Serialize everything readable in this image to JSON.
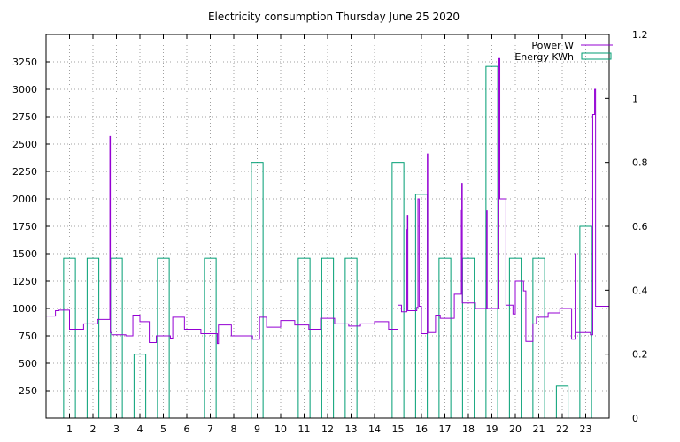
{
  "chart_data": {
    "type": "line",
    "title": "Electricity consumption Thursday June 25 2020",
    "xlabel": "",
    "ylabel": "",
    "y2label": "",
    "xlim": [
      0,
      24
    ],
    "ylim": [
      0,
      3500
    ],
    "y2lim": [
      0,
      1.2
    ],
    "x_ticks": [
      1,
      2,
      3,
      4,
      5,
      6,
      7,
      8,
      9,
      10,
      11,
      12,
      13,
      14,
      15,
      16,
      17,
      18,
      19,
      20,
      21,
      22,
      23
    ],
    "y_ticks": [
      250,
      500,
      750,
      1000,
      1250,
      1500,
      1750,
      2000,
      2250,
      2500,
      2750,
      3000,
      3250
    ],
    "y2_ticks": [
      0,
      0.2,
      0.4,
      0.6,
      0.8,
      1,
      1.2
    ],
    "grid": true,
    "legend_position": "top-right",
    "colors": {
      "power": "#9400d3",
      "energy": "#009e73",
      "grid": "#a0a0a0",
      "axis": "#000000"
    },
    "series": [
      {
        "name": "Power W",
        "style": "step-line",
        "points": [
          [
            0,
            930
          ],
          [
            0.4,
            930
          ],
          [
            0.4,
            980
          ],
          [
            0.55,
            980
          ],
          [
            0.55,
            985
          ],
          [
            1.0,
            985
          ],
          [
            1.0,
            810
          ],
          [
            1.6,
            810
          ],
          [
            1.6,
            860
          ],
          [
            2.2,
            860
          ],
          [
            2.2,
            900
          ],
          [
            2.72,
            900
          ],
          [
            2.72,
            2570
          ],
          [
            2.74,
            2570
          ],
          [
            2.74,
            780
          ],
          [
            2.8,
            780
          ],
          [
            2.8,
            760
          ],
          [
            3.4,
            760
          ],
          [
            3.4,
            750
          ],
          [
            3.7,
            750
          ],
          [
            3.7,
            940
          ],
          [
            4.0,
            940
          ],
          [
            4.0,
            880
          ],
          [
            4.4,
            880
          ],
          [
            4.4,
            690
          ],
          [
            4.7,
            690
          ],
          [
            4.7,
            750
          ],
          [
            5.3,
            750
          ],
          [
            5.3,
            730
          ],
          [
            5.4,
            730
          ],
          [
            5.4,
            920
          ],
          [
            5.9,
            920
          ],
          [
            5.9,
            810
          ],
          [
            6.6,
            810
          ],
          [
            6.6,
            770
          ],
          [
            7.3,
            770
          ],
          [
            7.3,
            680
          ],
          [
            7.35,
            680
          ],
          [
            7.35,
            850
          ],
          [
            7.9,
            850
          ],
          [
            7.9,
            750
          ],
          [
            8.8,
            750
          ],
          [
            8.8,
            720
          ],
          [
            9.1,
            720
          ],
          [
            9.1,
            920
          ],
          [
            9.4,
            920
          ],
          [
            9.4,
            830
          ],
          [
            10.0,
            830
          ],
          [
            10.0,
            890
          ],
          [
            10.6,
            890
          ],
          [
            10.6,
            850
          ],
          [
            11.2,
            850
          ],
          [
            11.2,
            810
          ],
          [
            11.7,
            810
          ],
          [
            11.7,
            910
          ],
          [
            12.3,
            910
          ],
          [
            12.3,
            860
          ],
          [
            12.9,
            860
          ],
          [
            12.9,
            840
          ],
          [
            13.4,
            840
          ],
          [
            13.4,
            860
          ],
          [
            14.0,
            860
          ],
          [
            14.0,
            880
          ],
          [
            14.6,
            880
          ],
          [
            14.6,
            810
          ],
          [
            15.0,
            810
          ],
          [
            15.0,
            1030
          ],
          [
            15.15,
            1030
          ],
          [
            15.15,
            970
          ],
          [
            15.38,
            970
          ],
          [
            15.38,
            1720
          ],
          [
            15.4,
            1720
          ],
          [
            15.4,
            1850
          ],
          [
            15.42,
            1850
          ],
          [
            15.42,
            980
          ],
          [
            15.8,
            980
          ],
          [
            15.8,
            1010
          ],
          [
            15.85,
            1010
          ],
          [
            15.85,
            2000
          ],
          [
            15.9,
            2000
          ],
          [
            15.9,
            1020
          ],
          [
            16.0,
            1020
          ],
          [
            16.0,
            770
          ],
          [
            16.25,
            770
          ],
          [
            16.25,
            2410
          ],
          [
            16.27,
            2410
          ],
          [
            16.27,
            780
          ],
          [
            16.6,
            780
          ],
          [
            16.6,
            940
          ],
          [
            16.8,
            940
          ],
          [
            16.8,
            910
          ],
          [
            17.4,
            910
          ],
          [
            17.4,
            1130
          ],
          [
            17.7,
            1130
          ],
          [
            17.7,
            1900
          ],
          [
            17.72,
            1900
          ],
          [
            17.72,
            2140
          ],
          [
            17.74,
            2140
          ],
          [
            17.74,
            1050
          ],
          [
            18.3,
            1050
          ],
          [
            18.3,
            1000
          ],
          [
            18.78,
            1000
          ],
          [
            18.78,
            1890
          ],
          [
            18.8,
            1890
          ],
          [
            18.8,
            1000
          ],
          [
            19.3,
            1000
          ],
          [
            19.3,
            3280
          ],
          [
            19.34,
            3280
          ],
          [
            19.34,
            2000
          ],
          [
            19.6,
            2000
          ],
          [
            19.6,
            1030
          ],
          [
            19.9,
            1030
          ],
          [
            19.9,
            950
          ],
          [
            20.0,
            950
          ],
          [
            20.0,
            1250
          ],
          [
            20.35,
            1250
          ],
          [
            20.35,
            1160
          ],
          [
            20.45,
            1160
          ],
          [
            20.45,
            700
          ],
          [
            20.75,
            700
          ],
          [
            20.75,
            860
          ],
          [
            20.9,
            860
          ],
          [
            20.9,
            920
          ],
          [
            21.4,
            920
          ],
          [
            21.4,
            960
          ],
          [
            21.9,
            960
          ],
          [
            21.9,
            1000
          ],
          [
            22.4,
            1000
          ],
          [
            22.4,
            720
          ],
          [
            22.55,
            720
          ],
          [
            22.55,
            1500
          ],
          [
            22.57,
            1500
          ],
          [
            22.57,
            780
          ],
          [
            23.2,
            780
          ],
          [
            23.2,
            760
          ],
          [
            23.3,
            760
          ],
          [
            23.3,
            2770
          ],
          [
            23.38,
            2770
          ],
          [
            23.38,
            3000
          ],
          [
            23.42,
            3000
          ],
          [
            23.42,
            1020
          ],
          [
            24.0,
            1020
          ]
        ]
      },
      {
        "name": "Energy KWh",
        "style": "boxes",
        "bars": [
          {
            "x": 1,
            "value": 0.5
          },
          {
            "x": 2,
            "value": 0.5
          },
          {
            "x": 3,
            "value": 0.5
          },
          {
            "x": 4,
            "value": 0.2
          },
          {
            "x": 5,
            "value": 0.5
          },
          {
            "x": 7,
            "value": 0.5
          },
          {
            "x": 9,
            "value": 0.8
          },
          {
            "x": 11,
            "value": 0.5
          },
          {
            "x": 12,
            "value": 0.5
          },
          {
            "x": 13,
            "value": 0.5
          },
          {
            "x": 15,
            "value": 0.8
          },
          {
            "x": 16,
            "value": 0.7
          },
          {
            "x": 17,
            "value": 0.5
          },
          {
            "x": 18,
            "value": 0.5
          },
          {
            "x": 19,
            "value": 1.1
          },
          {
            "x": 20,
            "value": 0.5
          },
          {
            "x": 21,
            "value": 0.5
          },
          {
            "x": 22,
            "value": 0.1
          },
          {
            "x": 23,
            "value": 0.6
          }
        ]
      }
    ]
  }
}
